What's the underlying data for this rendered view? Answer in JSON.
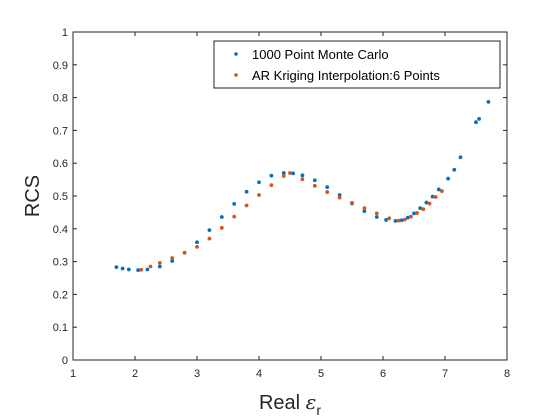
{
  "chart_data": {
    "type": "scatter",
    "xlabel": "Real",
    "xlabel_symbol": "ε",
    "xlabel_subscript": "r",
    "ylabel": "RCS",
    "xlim": [
      1,
      8
    ],
    "ylim": [
      0,
      1
    ],
    "xticks": [
      "1",
      "2",
      "3",
      "4",
      "5",
      "6",
      "7",
      "8"
    ],
    "yticks": [
      "0",
      "0.1",
      "0.2",
      "0.3",
      "0.4",
      "0.5",
      "0.6",
      "0.7",
      "0.8",
      "0.9",
      "1"
    ],
    "grid": false,
    "legend_position": "top-right",
    "series": [
      {
        "name": "1000 Point Monte Carlo",
        "color": "#0072BD",
        "x": [
          1.7,
          1.8,
          1.9,
          2.05,
          2.2,
          2.4,
          2.6,
          2.8,
          3.0,
          3.2,
          3.4,
          3.6,
          3.8,
          4.0,
          4.2,
          4.4,
          4.55,
          4.7,
          4.9,
          5.1,
          5.3,
          5.5,
          5.7,
          5.9,
          6.05,
          6.2,
          6.3,
          6.4,
          6.5,
          6.6,
          6.7,
          6.8,
          6.9,
          7.05,
          7.15,
          7.25,
          7.5,
          7.55,
          7.7
        ],
        "y": [
          0.283,
          0.279,
          0.276,
          0.274,
          0.276,
          0.285,
          0.302,
          0.327,
          0.359,
          0.396,
          0.436,
          0.476,
          0.513,
          0.542,
          0.562,
          0.57,
          0.569,
          0.563,
          0.548,
          0.527,
          0.503,
          0.477,
          0.454,
          0.436,
          0.427,
          0.424,
          0.426,
          0.434,
          0.447,
          0.463,
          0.48,
          0.498,
          0.52,
          0.553,
          0.58,
          0.618,
          0.725,
          0.735,
          0.787
        ]
      },
      {
        "name": "AR Kriging Interpolation:6 Points",
        "color": "#D95319",
        "x": [
          2.1,
          2.25,
          2.4,
          2.6,
          2.8,
          3.0,
          3.2,
          3.4,
          3.6,
          3.8,
          4.0,
          4.2,
          4.4,
          4.5,
          4.7,
          4.9,
          5.1,
          5.3,
          5.5,
          5.7,
          5.9,
          6.1,
          6.25,
          6.35,
          6.45,
          6.55,
          6.65,
          6.75,
          6.85,
          6.95
        ],
        "y": [
          0.275,
          0.285,
          0.296,
          0.311,
          0.327,
          0.345,
          0.37,
          0.403,
          0.437,
          0.471,
          0.503,
          0.533,
          0.561,
          0.57,
          0.551,
          0.531,
          0.512,
          0.495,
          0.479,
          0.463,
          0.447,
          0.432,
          0.425,
          0.428,
          0.437,
          0.448,
          0.46,
          0.477,
          0.497,
          0.515
        ]
      }
    ]
  }
}
